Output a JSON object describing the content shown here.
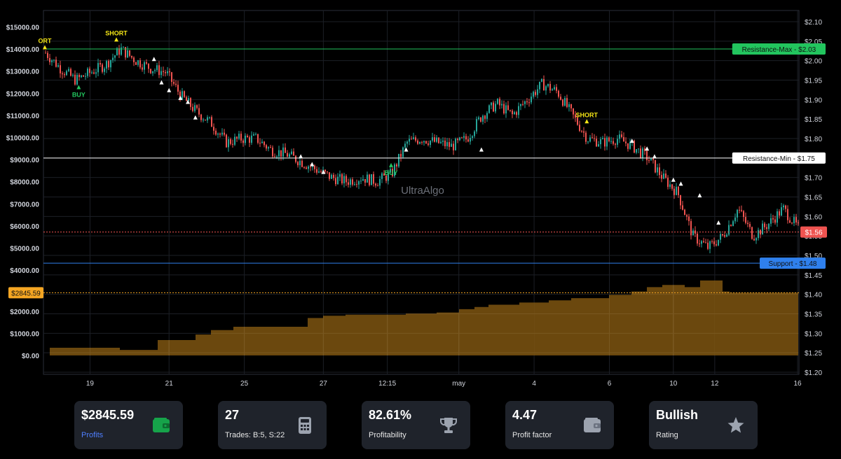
{
  "chart_data": {
    "type": "candlestick",
    "watermark": "UltraAlgo",
    "x_tick_labels": [
      "19",
      "21",
      "25",
      "27",
      "12:15",
      "may",
      "4",
      "6",
      "10",
      "12",
      "16"
    ],
    "price_axis": {
      "ticks": [
        "$2.10",
        "$2.05",
        "$2.00",
        "$1.95",
        "$1.90",
        "$1.85",
        "$1.80",
        "$1.75",
        "$1.70",
        "$1.65",
        "$1.60",
        "$1.55",
        "$1.50",
        "$1.45",
        "$1.40",
        "$1.35",
        "$1.30",
        "$1.25",
        "$1.20"
      ],
      "ylim": [
        1.2,
        2.1
      ]
    },
    "equity_axis": {
      "ticks": [
        "$15000.00",
        "$14000.00",
        "$13000.00",
        "$12000.00",
        "$11000.00",
        "$10000.00",
        "$9000.00",
        "$8000.00",
        "$7000.00",
        "$6000.00",
        "$5000.00",
        "$4000.00",
        "$2000.00",
        "$1000.00",
        "$0.00"
      ],
      "current_label": "$2845.59",
      "current_value": 2845.59
    },
    "levels": [
      {
        "label": "Resistance-Max - $2.03",
        "price": 2.03,
        "color": "#22c55e"
      },
      {
        "label": "Resistance-Min - $1.75",
        "price": 1.75,
        "color": "#ffffff"
      },
      {
        "label": "Support - $1.48",
        "price": 1.48,
        "color": "#2f80ed"
      }
    ],
    "current_price": {
      "label": "$1.56",
      "price": 1.56,
      "color": "#ef5350"
    },
    "price_path": [
      [
        0,
        2.02
      ],
      [
        2,
        1.98
      ],
      [
        4,
        1.95
      ],
      [
        6,
        1.97
      ],
      [
        8,
        1.99
      ],
      [
        10,
        2.03
      ],
      [
        12,
        2.0
      ],
      [
        14,
        1.98
      ],
      [
        16,
        1.97
      ],
      [
        18,
        1.91
      ],
      [
        20,
        1.87
      ],
      [
        22,
        1.84
      ],
      [
        24,
        1.79
      ],
      [
        26,
        1.8
      ],
      [
        28,
        1.8
      ],
      [
        30,
        1.77
      ],
      [
        32,
        1.76
      ],
      [
        34,
        1.74
      ],
      [
        36,
        1.72
      ],
      [
        38,
        1.7
      ],
      [
        40,
        1.69
      ],
      [
        42,
        1.7
      ],
      [
        44,
        1.69
      ],
      [
        46,
        1.71
      ],
      [
        48,
        1.79
      ],
      [
        50,
        1.8
      ],
      [
        52,
        1.79
      ],
      [
        54,
        1.78
      ],
      [
        56,
        1.8
      ],
      [
        58,
        1.86
      ],
      [
        60,
        1.89
      ],
      [
        62,
        1.86
      ],
      [
        64,
        1.9
      ],
      [
        66,
        1.94
      ],
      [
        68,
        1.92
      ],
      [
        70,
        1.86
      ],
      [
        72,
        1.8
      ],
      [
        74,
        1.79
      ],
      [
        76,
        1.8
      ],
      [
        78,
        1.78
      ],
      [
        80,
        1.75
      ],
      [
        82,
        1.7
      ],
      [
        84,
        1.66
      ],
      [
        86,
        1.55
      ],
      [
        88,
        1.52
      ],
      [
        90,
        1.55
      ],
      [
        92,
        1.62
      ],
      [
        94,
        1.55
      ],
      [
        96,
        1.58
      ],
      [
        98,
        1.62
      ],
      [
        100,
        1.57
      ]
    ],
    "equity_path": [
      [
        0,
        350
      ],
      [
        10,
        350
      ],
      [
        15,
        250
      ],
      [
        20,
        700
      ],
      [
        22,
        950
      ],
      [
        25,
        1150
      ],
      [
        28,
        1300
      ],
      [
        35,
        1300
      ],
      [
        37,
        1700
      ],
      [
        40,
        1800
      ],
      [
        42,
        1850
      ],
      [
        48,
        1850
      ],
      [
        52,
        1900
      ],
      [
        55,
        1950
      ],
      [
        57,
        2100
      ],
      [
        59,
        2200
      ],
      [
        63,
        2300
      ],
      [
        67,
        2400
      ],
      [
        70,
        2500
      ],
      [
        72,
        2600
      ],
      [
        75,
        2600
      ],
      [
        78,
        2750
      ],
      [
        80,
        2900
      ],
      [
        82,
        3100
      ],
      [
        85,
        3200
      ],
      [
        87,
        3100
      ],
      [
        88,
        3400
      ],
      [
        90,
        3400
      ],
      [
        91,
        2900
      ],
      [
        100,
        2845.59
      ]
    ],
    "signals": [
      {
        "t": 0,
        "price": 2.02,
        "dir": "down",
        "label": "ORT",
        "color": "#f5e616"
      },
      {
        "t": 4.5,
        "price": 1.95,
        "dir": "up",
        "label": "BUY",
        "color": "#22c55e"
      },
      {
        "t": 9.5,
        "price": 2.04,
        "dir": "down",
        "label": "SHORT",
        "color": "#f5e616"
      },
      {
        "t": 14.5,
        "price": 1.99,
        "dir": "down",
        "label": "",
        "color": "#ffffff"
      },
      {
        "t": 15.5,
        "price": 1.93,
        "dir": "down",
        "label": "",
        "color": "#ffffff"
      },
      {
        "t": 16.5,
        "price": 1.91,
        "dir": "down",
        "label": "",
        "color": "#ffffff"
      },
      {
        "t": 18,
        "price": 1.89,
        "dir": "down",
        "label": "",
        "color": "#ffffff"
      },
      {
        "t": 19,
        "price": 1.88,
        "dir": "down",
        "label": "",
        "color": "#ffffff"
      },
      {
        "t": 20,
        "price": 1.84,
        "dir": "down",
        "label": "",
        "color": "#ffffff"
      },
      {
        "t": 34,
        "price": 1.74,
        "dir": "down",
        "label": "",
        "color": "#ffffff"
      },
      {
        "t": 35.5,
        "price": 1.72,
        "dir": "down",
        "label": "",
        "color": "#ffffff"
      },
      {
        "t": 37,
        "price": 1.7,
        "dir": "down",
        "label": "",
        "color": "#ffffff"
      },
      {
        "t": 46,
        "price": 1.75,
        "dir": "up",
        "label": "BUY",
        "color": "#22c55e"
      },
      {
        "t": 48,
        "price": 1.79,
        "dir": "up",
        "label": "",
        "color": "#ffffff"
      },
      {
        "t": 58,
        "price": 1.79,
        "dir": "up",
        "label": "",
        "color": "#ffffff"
      },
      {
        "t": 72,
        "price": 1.83,
        "dir": "down",
        "label": "SHORT",
        "color": "#f5e616"
      },
      {
        "t": 78,
        "price": 1.78,
        "dir": "down",
        "label": "",
        "color": "#ffffff"
      },
      {
        "t": 80,
        "price": 1.76,
        "dir": "down",
        "label": "",
        "color": "#ffffff"
      },
      {
        "t": 81,
        "price": 1.74,
        "dir": "down",
        "label": "",
        "color": "#ffffff"
      },
      {
        "t": 83.5,
        "price": 1.68,
        "dir": "down",
        "label": "",
        "color": "#ffffff"
      },
      {
        "t": 84.5,
        "price": 1.67,
        "dir": "down",
        "label": "",
        "color": "#ffffff"
      },
      {
        "t": 87,
        "price": 1.64,
        "dir": "down",
        "label": "",
        "color": "#ffffff"
      },
      {
        "t": 89.5,
        "price": 1.57,
        "dir": "down",
        "label": "",
        "color": "#ffffff"
      }
    ]
  },
  "cards": [
    {
      "value": "$2845.59",
      "label": "Profits",
      "icon": "wallet-icon",
      "icon_color": "#16a34a"
    },
    {
      "value": "27",
      "label": "Trades: B:5, S:22",
      "icon": "calculator-icon",
      "icon_color": "#9ca3af"
    },
    {
      "value": "82.61%",
      "label": "Profitability",
      "icon": "trophy-icon",
      "icon_color": "#9ca3af"
    },
    {
      "value": "4.47",
      "label": "Profit factor",
      "icon": "wallet-icon",
      "icon_color": "#9ca3af"
    },
    {
      "value": "Bullish",
      "label": "Rating",
      "icon": "star-icon",
      "icon_color": "#9ca3af"
    }
  ]
}
